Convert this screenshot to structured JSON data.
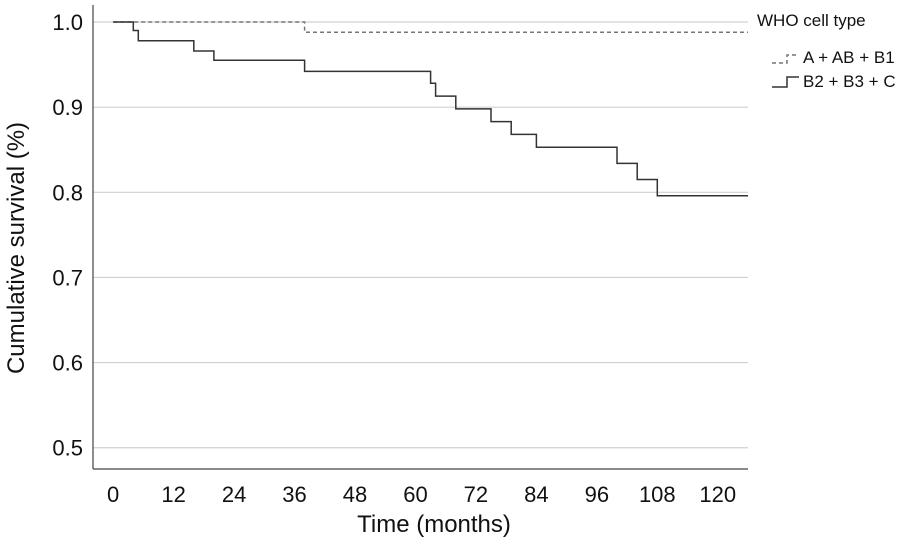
{
  "chart_data": {
    "type": "line",
    "step": true,
    "xlabel": "Time (months)",
    "ylabel": "Cumulative survival (%)",
    "xlim": [
      -4,
      126
    ],
    "ylim": [
      0.475,
      1.02
    ],
    "x_ticks": [
      0,
      12,
      24,
      36,
      48,
      60,
      72,
      84,
      96,
      108,
      120
    ],
    "y_ticks": [
      0.5,
      0.6,
      0.7,
      0.8,
      0.9,
      1.0
    ],
    "y_tick_labels": [
      "0.5",
      "0.6",
      "0.7",
      "0.8",
      "0.9",
      "1.0"
    ],
    "grid": "horizontal",
    "legend": {
      "title": "WHO cell type",
      "placement": "top-right-outside"
    },
    "series": [
      {
        "name": "A + AB + B1",
        "style": "dashed",
        "color": "#777777",
        "points": [
          [
            0,
            1.0
          ],
          [
            38,
            1.0
          ],
          [
            38,
            0.988
          ],
          [
            126,
            0.988
          ]
        ]
      },
      {
        "name": "B2 + B3 + C",
        "style": "solid",
        "color": "#333333",
        "points": [
          [
            0,
            1.0
          ],
          [
            4,
            1.0
          ],
          [
            4,
            0.99
          ],
          [
            5,
            0.99
          ],
          [
            5,
            0.978
          ],
          [
            16,
            0.978
          ],
          [
            16,
            0.966
          ],
          [
            20,
            0.966
          ],
          [
            20,
            0.955
          ],
          [
            38,
            0.955
          ],
          [
            38,
            0.942
          ],
          [
            63,
            0.942
          ],
          [
            63,
            0.928
          ],
          [
            64,
            0.928
          ],
          [
            64,
            0.913
          ],
          [
            68,
            0.913
          ],
          [
            68,
            0.898
          ],
          [
            75,
            0.898
          ],
          [
            75,
            0.883
          ],
          [
            79,
            0.883
          ],
          [
            79,
            0.868
          ],
          [
            84,
            0.868
          ],
          [
            84,
            0.853
          ],
          [
            100,
            0.853
          ],
          [
            100,
            0.834
          ],
          [
            104,
            0.834
          ],
          [
            104,
            0.815
          ],
          [
            108,
            0.815
          ],
          [
            108,
            0.796
          ],
          [
            126,
            0.796
          ]
        ]
      }
    ]
  }
}
